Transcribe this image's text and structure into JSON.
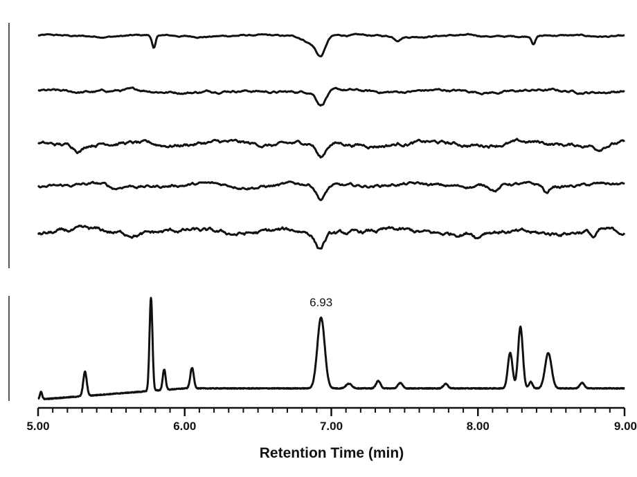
{
  "chart_data": {
    "type": "line",
    "xlabel": "Retention Time (min)",
    "xlim": [
      5.0,
      9.0
    ],
    "xticks": [
      {
        "value": 5.0,
        "label": "5.00"
      },
      {
        "value": 6.0,
        "label": "6.00"
      },
      {
        "value": 7.0,
        "label": "7.00"
      },
      {
        "value": 8.0,
        "label": "8.00"
      },
      {
        "value": 9.0,
        "label": "9.00"
      }
    ],
    "minor_tick_step": 0.1,
    "grid": false,
    "legend": "none",
    "line_color": "#111111",
    "panels": [
      {
        "position": "top",
        "traces": [
          {
            "baseline": 0.0,
            "noise": 0.25,
            "features": [
              {
                "x": 5.79,
                "depth": 3.2,
                "width": 0.012
              },
              {
                "x": 6.87,
                "depth": 1.6,
                "width": 0.05
              },
              {
                "x": 6.93,
                "depth": 4.0,
                "width": 0.03
              },
              {
                "x": 7.45,
                "depth": 0.8,
                "width": 0.02
              },
              {
                "x": 8.38,
                "depth": 1.8,
                "width": 0.012
              }
            ]
          },
          {
            "baseline": 0.0,
            "noise": 0.4,
            "features": [
              {
                "x": 6.93,
                "depth": 3.2,
                "width": 0.03
              }
            ]
          },
          {
            "baseline": 0.0,
            "noise": 0.6,
            "features": [
              {
                "x": 5.28,
                "depth": 1.2,
                "width": 0.03
              },
              {
                "x": 6.93,
                "depth": 3.6,
                "width": 0.03
              },
              {
                "x": 8.82,
                "depth": 1.0,
                "width": 0.03
              }
            ]
          },
          {
            "baseline": 0.0,
            "noise": 0.5,
            "features": [
              {
                "x": 5.52,
                "depth": 1.0,
                "width": 0.04
              },
              {
                "x": 6.93,
                "depth": 3.4,
                "width": 0.03
              },
              {
                "x": 8.12,
                "depth": 1.2,
                "width": 0.03
              },
              {
                "x": 8.47,
                "depth": 1.8,
                "width": 0.02
              }
            ]
          },
          {
            "baseline": 0.0,
            "noise": 0.7,
            "features": [
              {
                "x": 6.92,
                "depth": 3.6,
                "width": 0.03
              },
              {
                "x": 8.0,
                "depth": 1.2,
                "width": 0.02
              },
              {
                "x": 8.79,
                "depth": 1.6,
                "width": 0.02
              }
            ]
          }
        ]
      },
      {
        "position": "bottom",
        "peak_label": "6.93",
        "peak_label_x": 6.93,
        "baseline_start": 0.0,
        "baseline_end": 1.2,
        "peaks": [
          {
            "x": 5.02,
            "height": 0.8,
            "width": 0.008
          },
          {
            "x": 5.32,
            "height": 2.6,
            "width": 0.012
          },
          {
            "x": 5.77,
            "height": 10.0,
            "width": 0.01
          },
          {
            "x": 5.86,
            "height": 2.2,
            "width": 0.01
          },
          {
            "x": 6.05,
            "height": 2.2,
            "width": 0.012
          },
          {
            "x": 6.93,
            "height": 7.6,
            "width": 0.025
          },
          {
            "x": 7.12,
            "height": 0.5,
            "width": 0.02
          },
          {
            "x": 7.32,
            "height": 0.8,
            "width": 0.015
          },
          {
            "x": 7.47,
            "height": 0.6,
            "width": 0.015
          },
          {
            "x": 7.78,
            "height": 0.5,
            "width": 0.015
          },
          {
            "x": 8.22,
            "height": 3.8,
            "width": 0.016
          },
          {
            "x": 8.29,
            "height": 6.6,
            "width": 0.016
          },
          {
            "x": 8.36,
            "height": 0.7,
            "width": 0.012
          },
          {
            "x": 8.48,
            "height": 3.8,
            "width": 0.022
          },
          {
            "x": 8.71,
            "height": 0.6,
            "width": 0.015
          }
        ]
      }
    ]
  }
}
